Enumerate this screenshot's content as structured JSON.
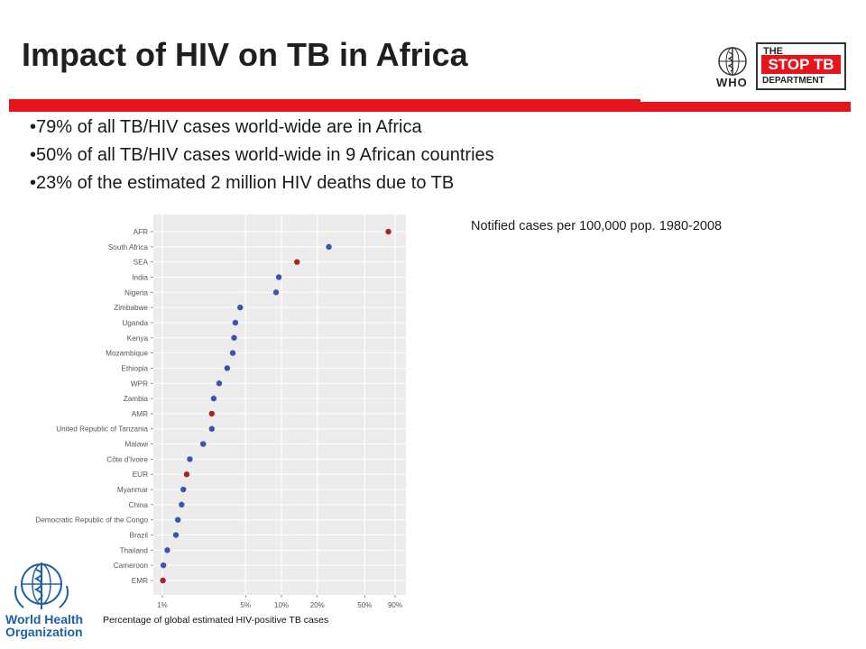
{
  "slide": {
    "title": "Impact of HIV on TB in  Africa",
    "bullets": [
      "•79% of all TB/HIV cases world-wide are in Africa",
      "•50% of all TB/HIV cases world-wide in 9 African countries",
      "•23% of the estimated 2 million HIV deaths due to TB"
    ],
    "subtitle": "Notified cases per 100,000 pop. 1980-2008"
  },
  "logos": {
    "who_top_text": "WHO",
    "stoptb_line1": "THE",
    "stoptb_line2": "STOP TB",
    "stoptb_line3": "DEPARTMENT",
    "who_bottom_line1": "World Health",
    "who_bottom_line2": "Organization"
  },
  "colors": {
    "accent_red": "#e8141c",
    "country_dot": "#3b54b0",
    "region_dot": "#b0221f",
    "who_blue": "#1f5fa8"
  },
  "chart_data": {
    "type": "scatter",
    "title": "",
    "xlabel": "Percentage of global estimated HIV-positive TB cases",
    "ylabel": "",
    "x_scale": "log",
    "xlim": [
      1,
      100
    ],
    "x_ticks": [
      {
        "value": 1,
        "label": "1%"
      },
      {
        "value": 5,
        "label": "5%"
      },
      {
        "value": 10,
        "label": "10%"
      },
      {
        "value": 20,
        "label": "20%"
      },
      {
        "value": 50,
        "label": "50%"
      },
      {
        "value": 90,
        "label": "90%"
      }
    ],
    "grid": true,
    "legend": "none",
    "categories": [
      "AFR",
      "South Africa",
      "SEA",
      "India",
      "Nigeria",
      "Zimbabwe",
      "Uganda",
      "Kenya",
      "Mozambique",
      "Ethiopia",
      "WPR",
      "Zambia",
      "AMR",
      "United Republic of Tanzania",
      "Malawi",
      "Côte d'Ivoire",
      "EUR",
      "Myanmar",
      "China",
      "Democratic Republic of the Congo",
      "Brazil",
      "Thailand",
      "Cameroon",
      "EMR"
    ],
    "values": [
      79,
      25,
      13.5,
      9.5,
      9,
      4.5,
      4.1,
      4.0,
      3.9,
      3.5,
      3.0,
      2.7,
      2.6,
      2.6,
      2.2,
      1.7,
      1.6,
      1.5,
      1.45,
      1.35,
      1.3,
      1.1,
      1.02,
      1.01
    ],
    "point_type": [
      "region",
      "country",
      "region",
      "country",
      "country",
      "country",
      "country",
      "country",
      "country",
      "country",
      "country",
      "country",
      "region",
      "country",
      "country",
      "country",
      "region",
      "country",
      "country",
      "country",
      "country",
      "country",
      "country",
      "region"
    ]
  }
}
